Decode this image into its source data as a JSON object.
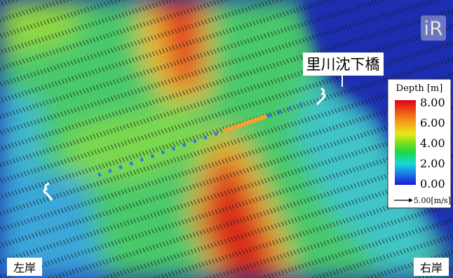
{
  "map": {
    "bridge_label": "里川沈下橋",
    "left_bank": "左岸",
    "right_bank": "右岸",
    "legend": {
      "title": "Depth [m]",
      "ticks": [
        "8.00",
        "6.00",
        "4.00",
        "2.00",
        "0.00"
      ],
      "vector_scale": "5.00[m/s]"
    }
  }
}
